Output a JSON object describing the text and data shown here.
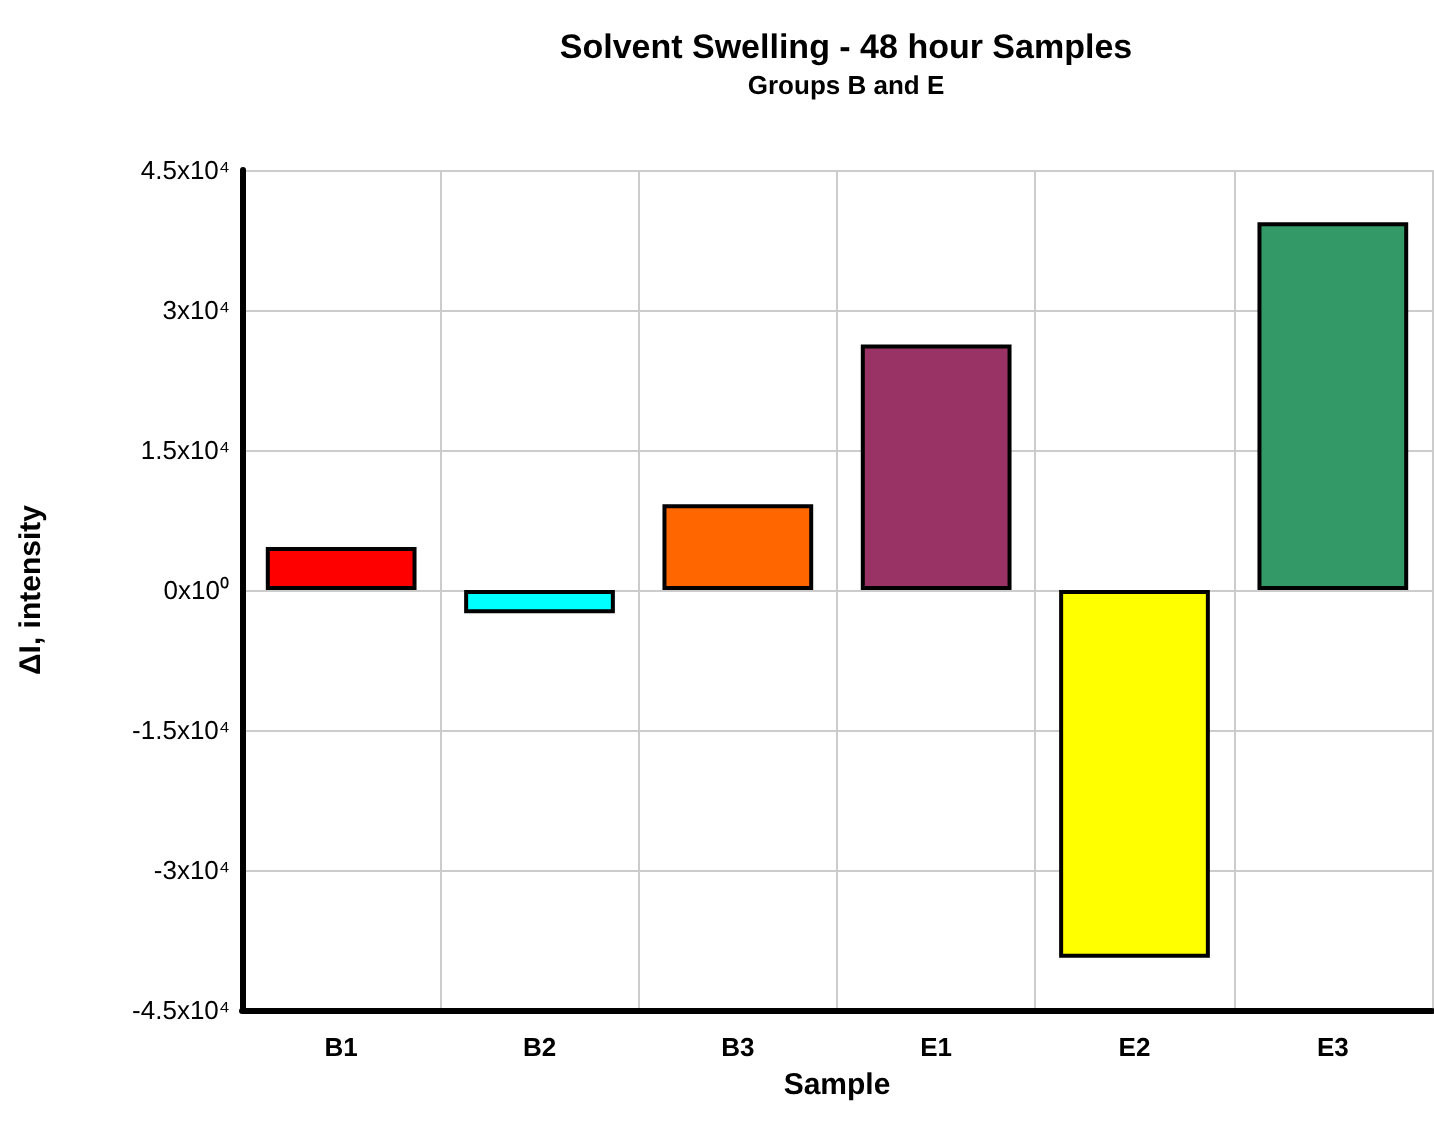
{
  "chart_data": {
    "type": "bar",
    "title": "Solvent Swelling - 48 hour Samples",
    "subtitle": "Groups B and E",
    "xlabel": "Sample",
    "ylabel": "ΔI, intensity",
    "categories": [
      "B1",
      "B2",
      "B3",
      "E1",
      "E2",
      "E3"
    ],
    "values": [
      4600,
      -2500,
      9200,
      26300,
      -39400,
      39400
    ],
    "colors": [
      "#ff0000",
      "#00ffff",
      "#ff6600",
      "#993366",
      "#ffff00",
      "#339966"
    ],
    "ylim": [
      -45000,
      45000
    ],
    "yticks": [
      {
        "value": -45000,
        "label": "-4.5x10⁴"
      },
      {
        "value": -30000,
        "label": "-3x10⁴"
      },
      {
        "value": -15000,
        "label": "-1.5x10⁴"
      },
      {
        "value": 0,
        "label": "0x10⁰"
      },
      {
        "value": 15000,
        "label": "1.5x10⁴"
      },
      {
        "value": 30000,
        "label": "3x10⁴"
      },
      {
        "value": 45000,
        "label": "4.5x10⁴"
      }
    ],
    "grid": true
  }
}
